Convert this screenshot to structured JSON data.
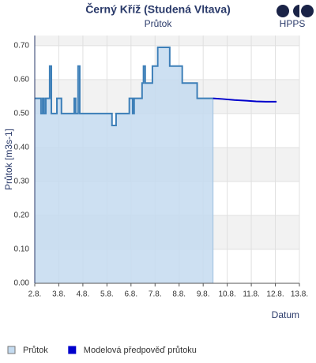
{
  "logo": "HPPS",
  "chart_data": {
    "type": "line",
    "title": "Černý Kříž (Studená Vltava)",
    "subtitle": "Průtok",
    "y_label": "Průtok [m3s-1]",
    "x_label": "Datum",
    "xlim": [
      2,
      13
    ],
    "ylim": [
      0,
      0.73
    ],
    "xticks": [
      {
        "value": 2,
        "label": "2.8."
      },
      {
        "value": 3,
        "label": "3.8."
      },
      {
        "value": 4,
        "label": "4.8."
      },
      {
        "value": 5,
        "label": "5.8."
      },
      {
        "value": 6,
        "label": "6.8."
      },
      {
        "value": 7,
        "label": "7.8."
      },
      {
        "value": 8,
        "label": "8.8."
      },
      {
        "value": 9,
        "label": "9.8."
      },
      {
        "value": 10,
        "label": "10.8."
      },
      {
        "value": 11,
        "label": "11.8."
      },
      {
        "value": 12,
        "label": "12.8."
      },
      {
        "value": 13,
        "label": "13.8."
      }
    ],
    "yticks": [
      {
        "value": 0,
        "label": "0.00"
      },
      {
        "value": 0.1,
        "label": "0.10"
      },
      {
        "value": 0.2,
        "label": "0.20"
      },
      {
        "value": 0.3,
        "label": "0.30"
      },
      {
        "value": 0.4,
        "label": "0.40"
      },
      {
        "value": 0.5,
        "label": "0.50"
      },
      {
        "value": 0.6,
        "label": "0.60"
      },
      {
        "value": 0.7,
        "label": "0.70"
      }
    ],
    "grid": true,
    "series": [
      {
        "name": "Průtok",
        "color": "#3d7fb8",
        "fill": "#c4dbf0",
        "area": true,
        "x": [
          2.0,
          2.26,
          2.26,
          2.33,
          2.33,
          2.39,
          2.39,
          2.46,
          2.46,
          2.62,
          2.62,
          2.69,
          2.69,
          2.92,
          2.92,
          3.11,
          3.11,
          3.64,
          3.64,
          3.7,
          3.7,
          3.8,
          3.8,
          3.87,
          3.87,
          5.21,
          5.21,
          5.38,
          5.38,
          5.93,
          5.93,
          6.07,
          6.07,
          6.13,
          6.13,
          6.46,
          6.46,
          6.52,
          6.52,
          6.59,
          6.59,
          6.89,
          6.89,
          7.11,
          7.11,
          7.61,
          7.61,
          8.13,
          8.13,
          8.75,
          8.75,
          9.41
        ],
        "values": [
          0.545,
          0.545,
          0.5,
          0.5,
          0.545,
          0.545,
          0.5,
          0.5,
          0.545,
          0.545,
          0.64,
          0.64,
          0.5,
          0.5,
          0.545,
          0.545,
          0.5,
          0.5,
          0.545,
          0.545,
          0.5,
          0.5,
          0.64,
          0.64,
          0.5,
          0.5,
          0.465,
          0.465,
          0.5,
          0.5,
          0.545,
          0.545,
          0.5,
          0.5,
          0.545,
          0.545,
          0.59,
          0.59,
          0.64,
          0.64,
          0.59,
          0.59,
          0.64,
          0.64,
          0.695,
          0.695,
          0.64,
          0.64,
          0.59,
          0.59,
          0.545,
          0.545
        ]
      },
      {
        "name": "Modelová předpověď průtoku",
        "color": "#0000cc",
        "area": false,
        "x": [
          9.41,
          9.8,
          10.3,
          10.8,
          11.2,
          11.6,
          12.05
        ],
        "values": [
          0.545,
          0.543,
          0.54,
          0.538,
          0.536,
          0.535,
          0.535
        ]
      }
    ]
  }
}
